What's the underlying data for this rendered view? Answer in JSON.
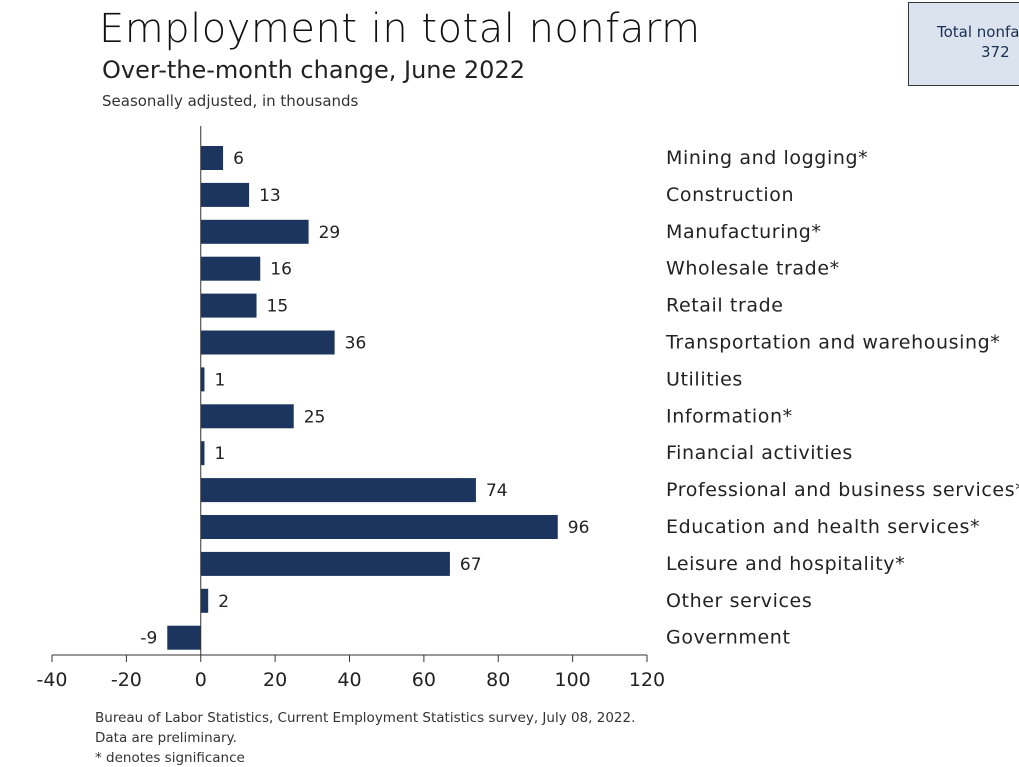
{
  "header": {
    "title": "Employment in total nonfarm",
    "subtitle": "Over-the-month change, June 2022",
    "note": "Seasonally adjusted, in thousands"
  },
  "summary": {
    "label": "Total nonfarm",
    "value": "372"
  },
  "footer": {
    "source": "Bureau of Labor Statistics, Current Employment Statistics survey, July 08, 2022.",
    "preliminary": "Data are preliminary.",
    "significance": "* denotes significance"
  },
  "colors": {
    "bar": "#1c355e",
    "axis": "#333333",
    "summary_bg": "#dbe3ee"
  },
  "chart_data": {
    "type": "bar",
    "orientation": "horizontal",
    "categories": [
      "Mining and logging*",
      "Construction",
      "Manufacturing*",
      "Wholesale trade*",
      "Retail trade",
      "Transportation and warehousing*",
      "Utilities",
      "Information*",
      "Financial activities",
      "Professional and business services*",
      "Education and health services*",
      "Leisure and hospitality*",
      "Other services",
      "Government"
    ],
    "values": [
      6,
      13,
      29,
      16,
      15,
      36,
      1,
      25,
      1,
      74,
      96,
      67,
      2,
      -9
    ],
    "xlim": [
      -40,
      120
    ],
    "xticks": [
      -40,
      -20,
      0,
      20,
      40,
      60,
      80,
      100,
      120
    ],
    "grid": false,
    "data_labels": true
  }
}
